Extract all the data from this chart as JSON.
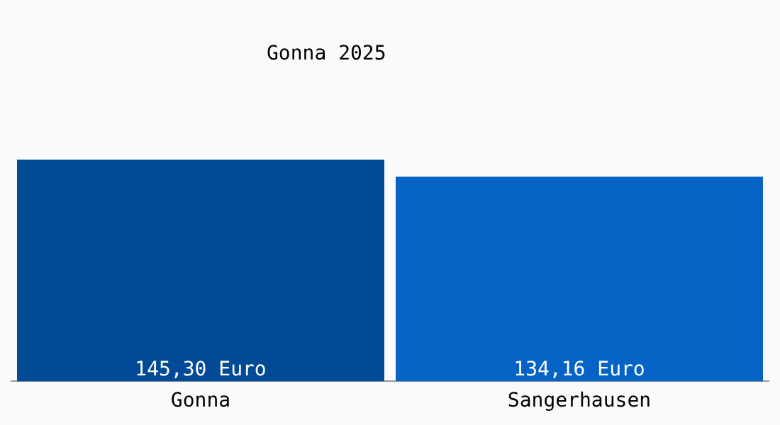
{
  "chart_data": {
    "type": "bar",
    "title": "Gonna 2025",
    "categories": [
      "Gonna",
      "Sangerhausen"
    ],
    "values": [
      145.3,
      134.16
    ],
    "colors": [
      "#034a96",
      "#0563c6"
    ],
    "value_labels": [
      "145,30 Euro",
      "134,16 Euro"
    ],
    "grid": false,
    "legend": false
  }
}
